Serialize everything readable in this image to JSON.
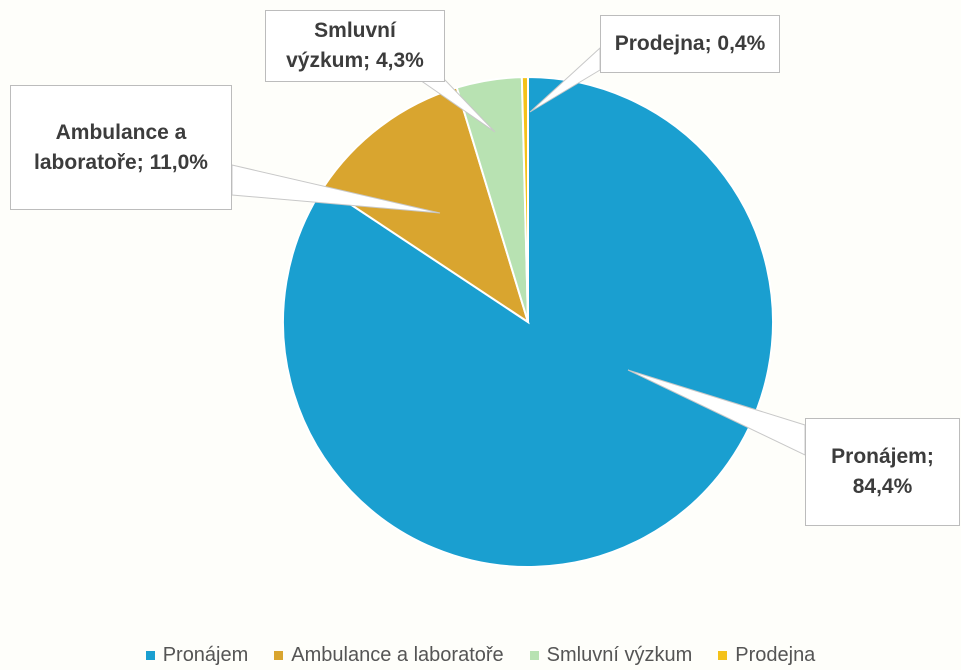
{
  "chart_data": {
    "type": "pie",
    "categories": [
      "Pronájem",
      "Ambulance a laboratoře",
      "Smluvní výzkum",
      "Prodejna"
    ],
    "values": [
      84.4,
      11.0,
      4.3,
      0.4
    ],
    "value_labels": [
      "Pronájem; 84,4%",
      "Ambulance a laboratoře; 11,0%",
      "Smluvní výzkum; 4,3%",
      "Prodejna; 0,4%"
    ],
    "colors": [
      "#1a9fd0",
      "#d9a52f",
      "#b8e2b2",
      "#f4c21a"
    ],
    "legend": "bottom"
  }
}
